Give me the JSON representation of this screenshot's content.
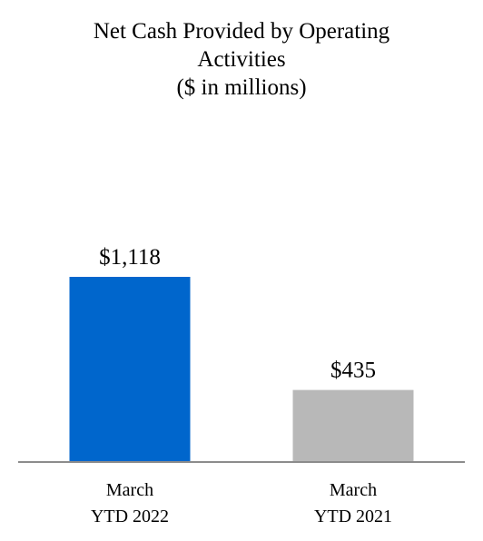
{
  "chart_data": {
    "type": "bar",
    "title_lines": [
      "Net Cash Provided by Operating",
      "Activities",
      "($ in millions)"
    ],
    "categories": [
      [
        "March",
        "YTD 2022"
      ],
      [
        "March",
        "YTD 2021"
      ]
    ],
    "values": [
      1118,
      435
    ],
    "data_labels": [
      "$1,118",
      "$435"
    ],
    "bar_colors": [
      "#0066cc",
      "#b8b8b8"
    ],
    "axis_color": "#8c8c8c",
    "ylim": [
      0,
      1300
    ],
    "grid": false,
    "legend": "none",
    "xlabel": "",
    "ylabel": ""
  }
}
